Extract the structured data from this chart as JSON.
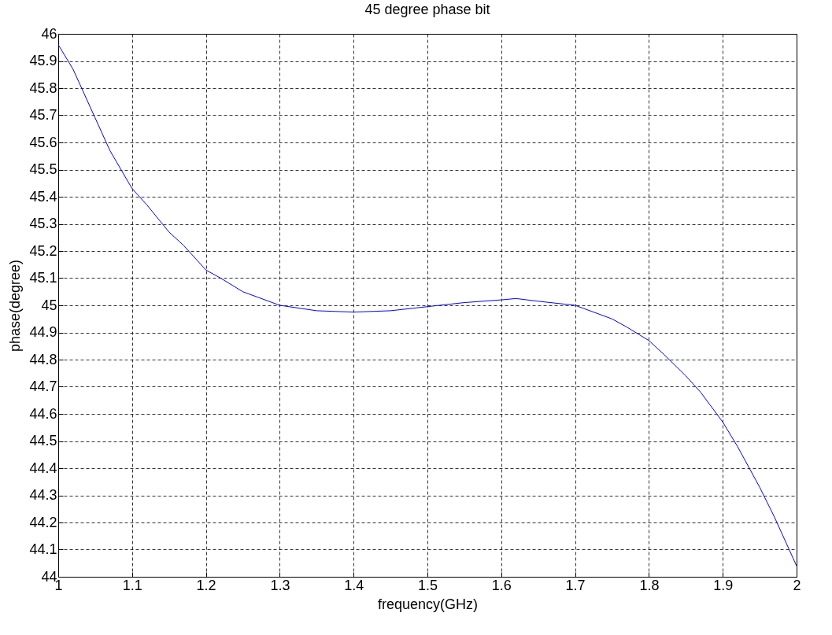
{
  "chart_data": {
    "type": "line",
    "title": "45 degree phase bit",
    "xlabel": "frequency(GHz)",
    "ylabel": "phase(degree)",
    "x": [
      1.0,
      1.02,
      1.05,
      1.07,
      1.1,
      1.12,
      1.15,
      1.17,
      1.2,
      1.22,
      1.25,
      1.27,
      1.3,
      1.35,
      1.4,
      1.45,
      1.5,
      1.55,
      1.6,
      1.62,
      1.65,
      1.7,
      1.75,
      1.77,
      1.8,
      1.82,
      1.85,
      1.87,
      1.9,
      1.92,
      1.95,
      1.97,
      2.0
    ],
    "series": [
      {
        "color": "#0000ff",
        "values": [
          45.96,
          45.87,
          45.69,
          45.57,
          45.43,
          45.37,
          45.27,
          45.22,
          45.13,
          45.1,
          45.05,
          45.03,
          45.0,
          44.98,
          44.975,
          44.98,
          44.995,
          45.01,
          45.02,
          45.025,
          45.015,
          45.0,
          44.95,
          44.92,
          44.87,
          44.82,
          44.74,
          44.68,
          44.57,
          44.48,
          44.33,
          44.22,
          44.04
        ]
      }
    ],
    "xlim": [
      1,
      2
    ],
    "xticks": [
      1,
      1.1,
      1.2,
      1.3,
      1.4,
      1.5,
      1.6,
      1.7,
      1.8,
      1.9,
      2
    ],
    "ylim": [
      44,
      46
    ],
    "yticks": [
      44,
      44.1,
      44.2,
      44.3,
      44.4,
      44.5,
      44.6,
      44.7,
      44.8,
      44.9,
      45,
      45.1,
      45.2,
      45.3,
      45.4,
      45.5,
      45.6,
      45.7,
      45.8,
      45.9,
      46
    ],
    "grid": true,
    "marker": "none",
    "line_style": "solid"
  }
}
